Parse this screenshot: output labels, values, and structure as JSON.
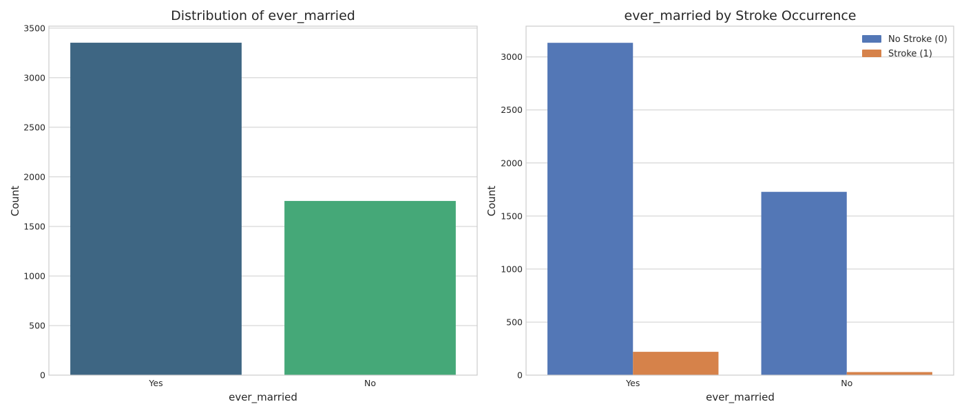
{
  "chart_data": [
    {
      "type": "bar",
      "title": "Distribution of ever_married",
      "xlabel": "ever_married",
      "ylabel": "Count",
      "categories": [
        "Yes",
        "No"
      ],
      "values": [
        3353,
        1757
      ],
      "colors": [
        "#3e6683",
        "#45a878"
      ],
      "ylim": [
        0,
        3520
      ],
      "yticks": [
        0,
        500,
        1000,
        1500,
        2000,
        2500,
        3000,
        3500
      ],
      "grid": true
    },
    {
      "type": "bar",
      "title": "ever_married by Stroke Occurrence",
      "xlabel": "ever_married",
      "ylabel": "Count",
      "categories": [
        "Yes",
        "No"
      ],
      "series": [
        {
          "name": "No Stroke (0)",
          "values": [
            3133,
            1728
          ],
          "color": "#5377b6"
        },
        {
          "name": "Stroke (1)",
          "values": [
            220,
            29
          ],
          "color": "#d6824a"
        }
      ],
      "ylim": [
        0,
        3290
      ],
      "yticks": [
        0,
        500,
        1000,
        1500,
        2000,
        2500,
        3000
      ],
      "grid": true,
      "legend_position": "top-right"
    }
  ]
}
